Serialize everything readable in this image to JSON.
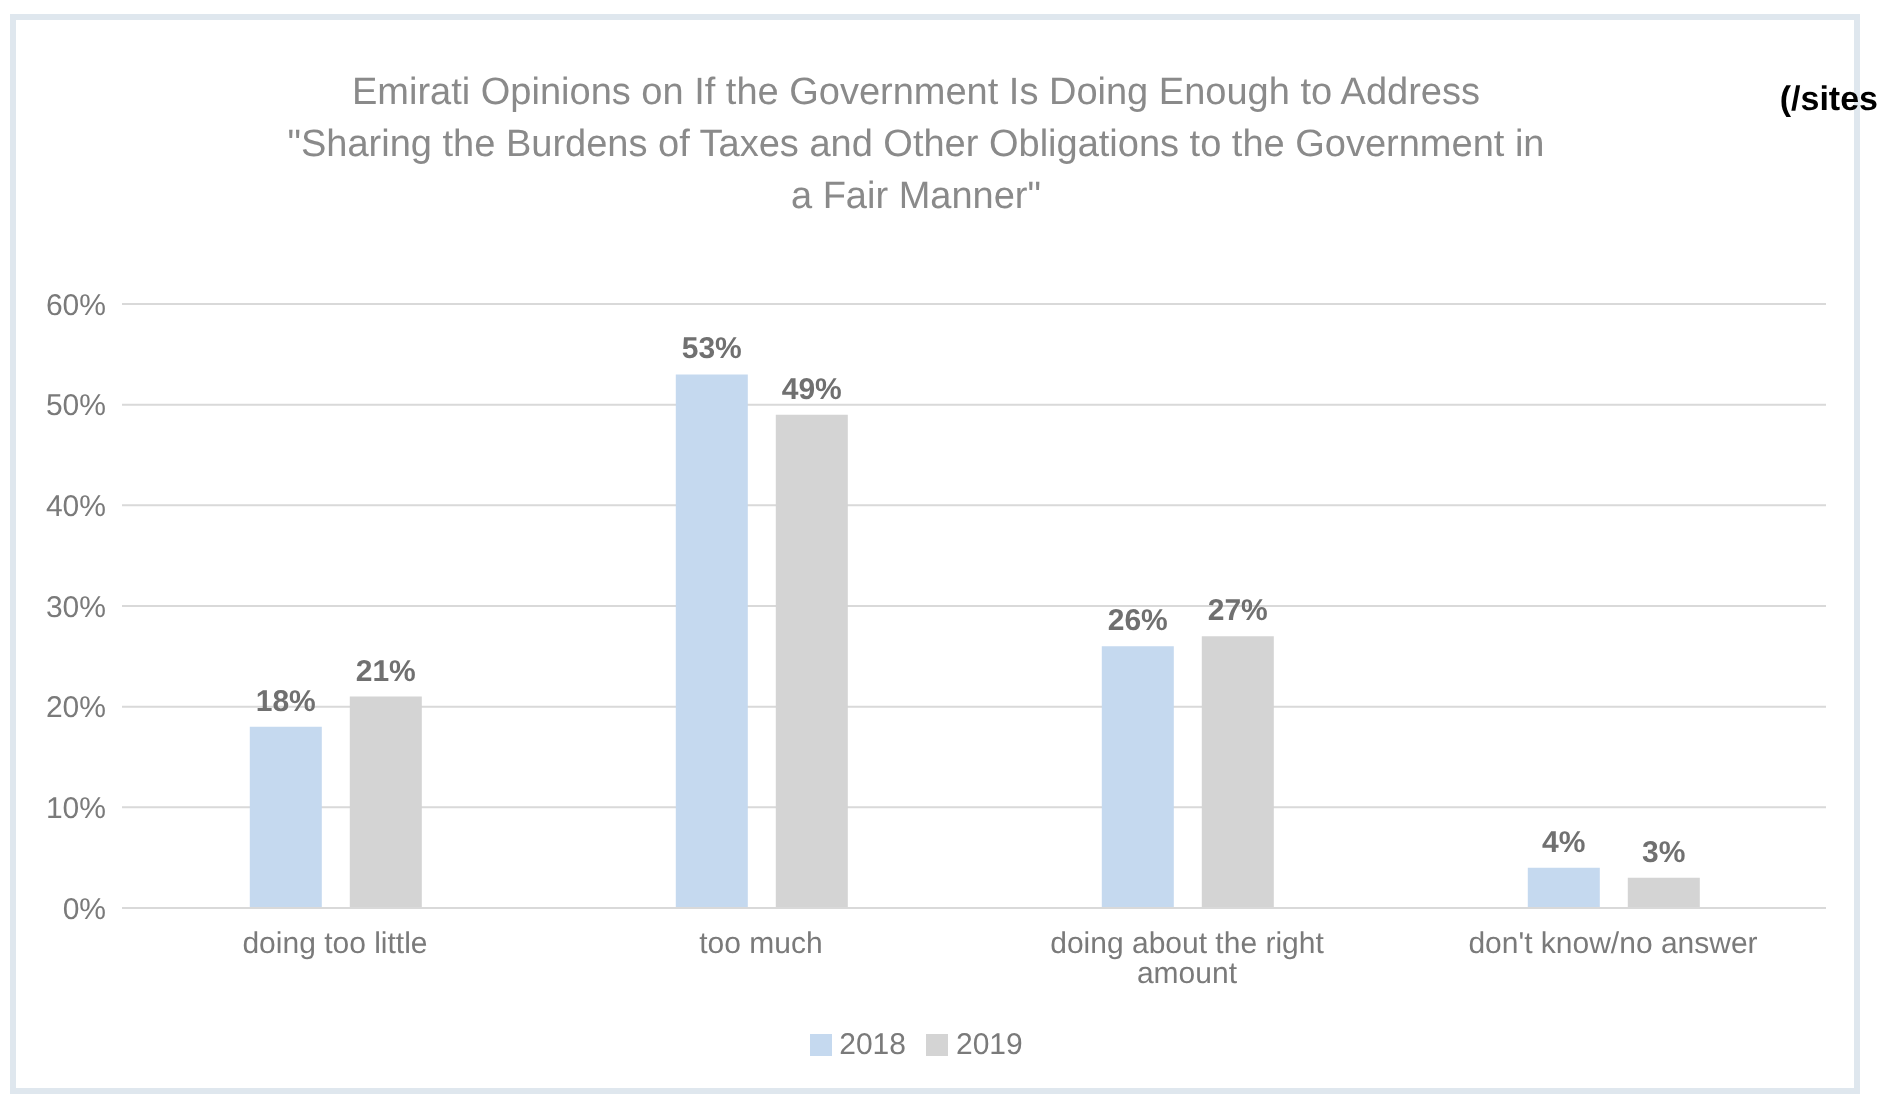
{
  "chart_data": {
    "type": "bar",
    "title": "Emirati Opinions on If the Government Is Doing Enough to Address \"Sharing the Burdens of Taxes and Other Obligations to the Government in a Fair Manner\"",
    "categories": [
      "doing too little",
      "too much",
      "doing about the right amount",
      "don't know/no answer"
    ],
    "series": [
      {
        "name": "2018",
        "color": "#c5d9ef",
        "values": [
          18,
          53,
          26,
          4
        ],
        "value_labels": [
          "18%",
          "53%",
          "26%",
          "4%"
        ]
      },
      {
        "name": "2019",
        "color": "#d4d4d4",
        "values": [
          21,
          49,
          27,
          3
        ],
        "value_labels": [
          "21%",
          "49%",
          "27%",
          "3%"
        ]
      }
    ],
    "ylim": [
      0,
      60
    ],
    "yticks": [
      {
        "value": 0,
        "label": "0%"
      },
      {
        "value": 10,
        "label": "10%"
      },
      {
        "value": 20,
        "label": "20%"
      },
      {
        "value": 30,
        "label": "30%"
      },
      {
        "value": 40,
        "label": "40%"
      },
      {
        "value": 50,
        "label": "50%"
      },
      {
        "value": 60,
        "label": "60%"
      }
    ],
    "grid": "y",
    "legend": "bottom",
    "annotations": [
      "(/sites"
    ]
  }
}
